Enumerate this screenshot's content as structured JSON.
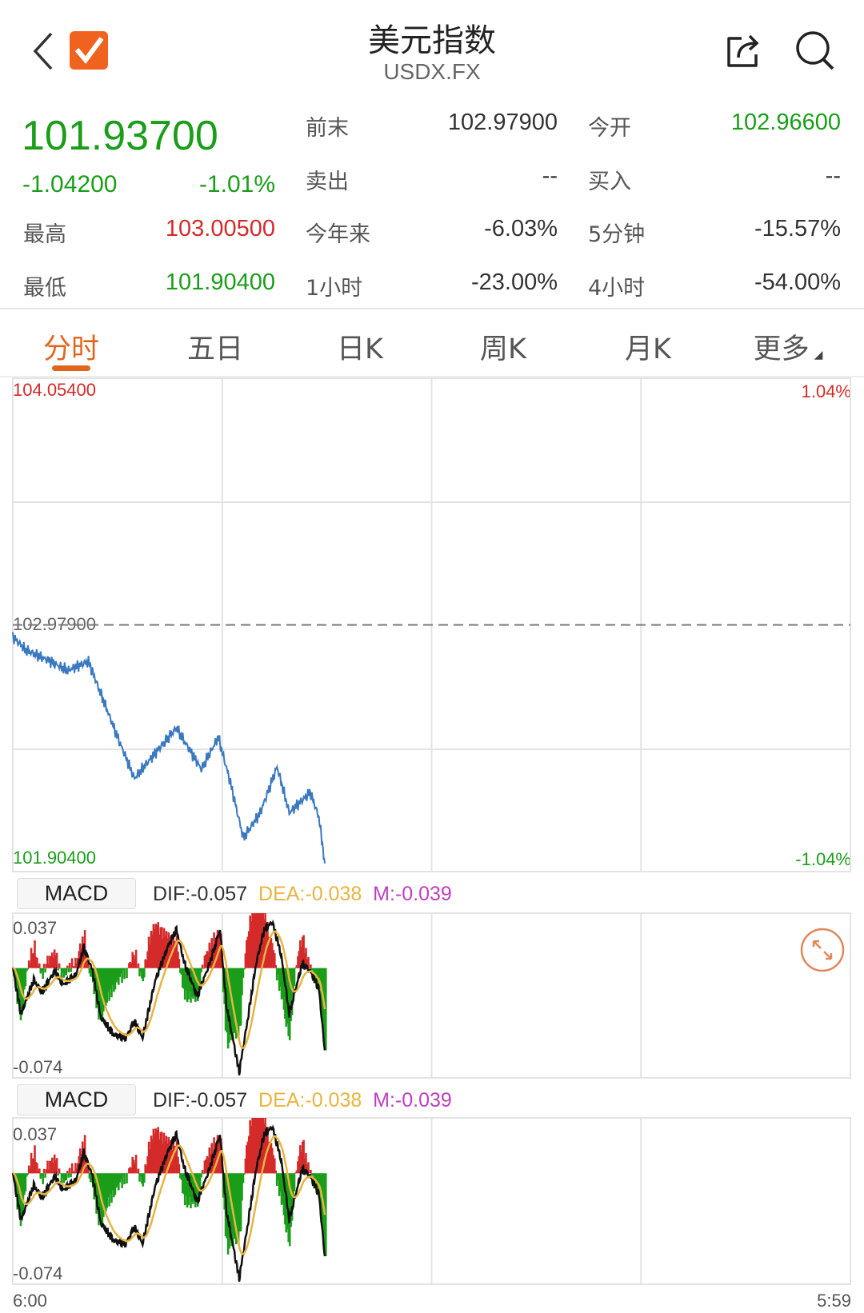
{
  "header": {
    "title": "美元指数",
    "symbol": "USDX.FX",
    "back_icon": "chevron-left-icon",
    "app_icon": "orange-checkmark-icon",
    "share_icon": "share-icon",
    "search_icon": "search-icon"
  },
  "quote": {
    "price": "101.93700",
    "change": "-1.04200",
    "change_pct": "-1.01%",
    "stats": [
      {
        "label": "前末",
        "value": "102.97900",
        "color": "#333333"
      },
      {
        "label": "今开",
        "value": "102.96600",
        "color": "#1a9e1a"
      },
      {
        "label": "卖出",
        "value": "--",
        "color": "#333333"
      },
      {
        "label": "买入",
        "value": "--",
        "color": "#333333"
      },
      {
        "label": "最高",
        "value": "103.00500",
        "color": "#d42a2a"
      },
      {
        "label": "今年来",
        "value": "-6.03%",
        "color": "#333333"
      },
      {
        "label": "5分钟",
        "value": "-15.57%",
        "color": "#333333"
      },
      {
        "label": "最低",
        "value": "101.90400",
        "color": "#1a9e1a"
      },
      {
        "label": "1小时",
        "value": "-23.00%",
        "color": "#333333"
      },
      {
        "label": "4小时",
        "value": "-54.00%",
        "color": "#333333"
      }
    ]
  },
  "tabs": [
    {
      "label": "分时",
      "active": true
    },
    {
      "label": "五日"
    },
    {
      "label": "日K"
    },
    {
      "label": "周K"
    },
    {
      "label": "月K"
    },
    {
      "label": "更多"
    }
  ],
  "colors": {
    "up": "#d42a2a",
    "down": "#1a9e1a",
    "line": "#3a78c0",
    "accent": "#e0661e",
    "dif": "#111111",
    "dea": "#e8b440",
    "m": "#c040c0"
  },
  "chart_data": [
    {
      "type": "line",
      "name": "price",
      "y_top_label": "104.05400",
      "y_bottom_label": "101.90400",
      "prev_close_label": "102.97900",
      "pct_top_label": "1.04%",
      "pct_bottom_label": "-1.04%",
      "ylim": [
        101.904,
        104.054
      ],
      "prev_close": 102.979,
      "x_start_label": "6:00",
      "x_end_label": "5:59",
      "points": [
        [
          "6:00",
          102.928
        ],
        [
          "6:22",
          102.87
        ],
        [
          "7:05",
          102.82
        ],
        [
          "7:34",
          102.78
        ],
        [
          "8:10",
          102.82
        ],
        [
          "8:31",
          102.68
        ],
        [
          "9:00",
          102.49
        ],
        [
          "9:29",
          102.31
        ],
        [
          "9:58",
          102.4
        ],
        [
          "10:41",
          102.53
        ],
        [
          "11:24",
          102.35
        ],
        [
          "11:53",
          102.49
        ],
        [
          "12:14",
          102.29
        ],
        [
          "12:36",
          102.05
        ],
        [
          "13:05",
          102.16
        ],
        [
          "13:34",
          102.36
        ],
        [
          "13:55",
          102.16
        ],
        [
          "14:31",
          102.25
        ],
        [
          "14:46",
          102.14
        ],
        [
          "14:56",
          101.94
        ]
      ]
    },
    {
      "type": "macd",
      "label": "MACD",
      "dif_label": "DIF:-0.057",
      "dea_label": "DEA:-0.038",
      "m_label": "M:-0.039",
      "y_top_label": "0.037",
      "y_bottom_label": "-0.074",
      "ylim": [
        -0.074,
        0.037
      ],
      "dif": [
        [
          "6:00",
          0
        ],
        [
          "6:14",
          -0.031
        ],
        [
          "6:36",
          -0.008
        ],
        [
          "6:50",
          -0.016
        ],
        [
          "7:12",
          -0.002
        ],
        [
          "7:26",
          -0.011
        ],
        [
          "7:48",
          -0.005
        ],
        [
          "8:02",
          0.014
        ],
        [
          "8:17",
          -0.002
        ],
        [
          "8:31",
          -0.033
        ],
        [
          "8:53",
          -0.045
        ],
        [
          "9:14",
          -0.047
        ],
        [
          "9:29",
          -0.036
        ],
        [
          "9:43",
          -0.047
        ],
        [
          "10:05",
          -0.008
        ],
        [
          "10:26",
          0.014
        ],
        [
          "10:41",
          0.026
        ],
        [
          "10:55",
          0.003
        ],
        [
          "11:17",
          -0.019
        ],
        [
          "11:38",
          0.003
        ],
        [
          "11:56",
          0.026
        ],
        [
          "12:07",
          -0.025
        ],
        [
          "12:29",
          -0.07
        ],
        [
          "12:43",
          -0.036
        ],
        [
          "12:58",
          0.003
        ],
        [
          "13:12",
          0.026
        ],
        [
          "13:26",
          0.031
        ],
        [
          "13:41",
          0.009
        ],
        [
          "13:55",
          -0.031
        ],
        [
          "14:17",
          0.003
        ],
        [
          "14:31",
          -0.002
        ],
        [
          "14:46",
          -0.014
        ],
        [
          "14:56",
          -0.056
        ]
      ]
    }
  ]
}
